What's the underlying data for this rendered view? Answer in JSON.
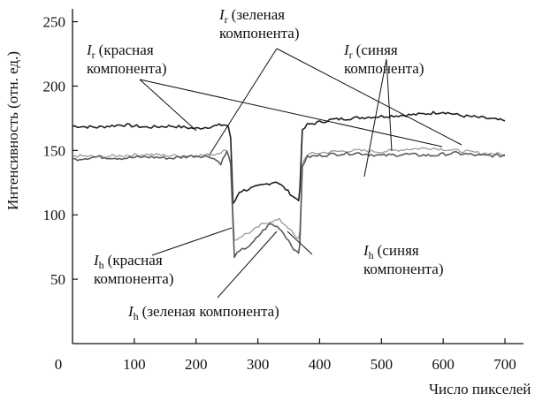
{
  "chart_data": {
    "type": "line",
    "title": "",
    "xlabel": "Число пикселей",
    "ylabel": "Интенсивность (отн. ед.)",
    "xlim": [
      0,
      730
    ],
    "ylim": [
      0,
      260
    ],
    "x_ticks": [
      0,
      100,
      200,
      300,
      400,
      500,
      600,
      700
    ],
    "y_ticks": [
      50,
      100,
      150,
      200,
      250
    ],
    "grid": false,
    "colors": {
      "dark": "#1f1f1f",
      "mid": "#5a5a5a",
      "light": "#9a9a9a"
    },
    "series": [
      {
        "color_key": "dark",
        "points": [
          [
            0,
            169
          ],
          [
            40,
            168
          ],
          [
            80,
            170
          ],
          [
            120,
            168
          ],
          [
            160,
            169
          ],
          [
            200,
            167
          ],
          [
            230,
            169
          ],
          [
            245,
            170
          ],
          [
            252,
            169
          ],
          [
            256,
            160
          ],
          [
            260,
            108
          ],
          [
            270,
            118
          ],
          [
            285,
            120
          ],
          [
            300,
            122
          ],
          [
            315,
            124
          ],
          [
            330,
            126
          ],
          [
            345,
            120
          ],
          [
            360,
            113
          ],
          [
            366,
            112
          ],
          [
            368,
            120
          ],
          [
            372,
            165
          ],
          [
            380,
            170
          ],
          [
            400,
            172
          ],
          [
            420,
            174
          ],
          [
            450,
            175
          ],
          [
            480,
            176
          ],
          [
            520,
            177
          ],
          [
            560,
            178
          ],
          [
            600,
            180
          ],
          [
            630,
            177
          ],
          [
            670,
            175
          ],
          [
            700,
            173
          ]
        ]
      },
      {
        "color_key": "light",
        "points": [
          [
            0,
            146
          ],
          [
            40,
            145
          ],
          [
            80,
            146
          ],
          [
            120,
            147
          ],
          [
            160,
            146
          ],
          [
            200,
            146
          ],
          [
            230,
            147
          ],
          [
            245,
            150
          ],
          [
            252,
            148
          ],
          [
            256,
            140
          ],
          [
            262,
            80
          ],
          [
            275,
            84
          ],
          [
            290,
            87
          ],
          [
            305,
            92
          ],
          [
            320,
            95
          ],
          [
            335,
            96
          ],
          [
            350,
            90
          ],
          [
            362,
            82
          ],
          [
            366,
            81
          ],
          [
            368,
            88
          ],
          [
            372,
            140
          ],
          [
            380,
            147
          ],
          [
            420,
            149
          ],
          [
            460,
            150
          ],
          [
            500,
            149
          ],
          [
            540,
            151
          ],
          [
            580,
            152
          ],
          [
            620,
            150
          ],
          [
            660,
            148
          ],
          [
            700,
            147
          ]
        ]
      },
      {
        "color_key": "mid",
        "points": [
          [
            0,
            143
          ],
          [
            40,
            145
          ],
          [
            80,
            144
          ],
          [
            120,
            145
          ],
          [
            160,
            144
          ],
          [
            200,
            146
          ],
          [
            225,
            145
          ],
          [
            240,
            140
          ],
          [
            250,
            149
          ],
          [
            256,
            140
          ],
          [
            262,
            68
          ],
          [
            275,
            73
          ],
          [
            290,
            77
          ],
          [
            305,
            86
          ],
          [
            320,
            93
          ],
          [
            335,
            90
          ],
          [
            350,
            80
          ],
          [
            362,
            71
          ],
          [
            366,
            70
          ],
          [
            368,
            78
          ],
          [
            372,
            138
          ],
          [
            380,
            145
          ],
          [
            420,
            147
          ],
          [
            460,
            148
          ],
          [
            500,
            146
          ],
          [
            540,
            147
          ],
          [
            580,
            146
          ],
          [
            620,
            148
          ],
          [
            660,
            146
          ],
          [
            700,
            146
          ]
        ]
      }
    ],
    "annotations": [
      {
        "var": "I",
        "sub": "r",
        "lines": [
          "(красная",
          "компонента)"
        ]
      },
      {
        "var": "I",
        "sub": "r",
        "lines": [
          "(зеленая",
          "компонента)"
        ]
      },
      {
        "var": "I",
        "sub": "r",
        "lines": [
          "(синяя",
          "компонента)"
        ]
      },
      {
        "var": "I",
        "sub": "h",
        "lines": [
          "(красная",
          "компонента)"
        ]
      },
      {
        "var": "I",
        "sub": "h",
        "lines": [
          "(синяя",
          "компонента)"
        ]
      },
      {
        "var": "I",
        "sub": "h",
        "lines": [
          "(зеленая компонента)"
        ]
      }
    ]
  }
}
